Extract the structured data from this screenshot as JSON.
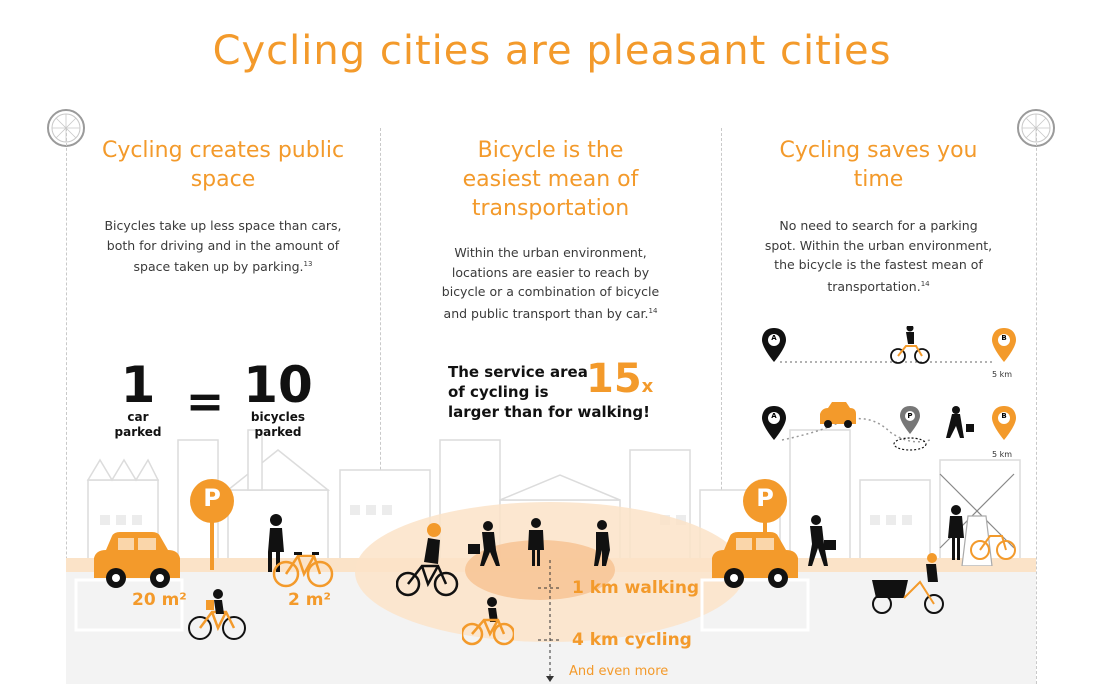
{
  "title": "Cycling cities are pleasant cities",
  "columns": [
    {
      "title_lines": [
        "Cycling creates public",
        "space"
      ],
      "body_lines": [
        "Bicycles take up less space than cars,",
        "both for driving and in the amount of",
        "space taken up by parking."
      ],
      "footnote": "13"
    },
    {
      "title_lines": [
        "Bicycle is the",
        "easiest mean of",
        "transportation"
      ],
      "body_lines": [
        "Within the urban environment,",
        "locations are easier to reach by",
        "bicycle or a combination of bicycle",
        "and public transport than by car."
      ],
      "footnote": "14"
    },
    {
      "title_lines": [
        "Cycling saves you",
        "time"
      ],
      "body_lines": [
        "No need to search for a parking",
        "spot. Within the urban environment,",
        "the bicycle is the fastest mean of",
        "transportation."
      ],
      "footnote": "14"
    }
  ],
  "equation": {
    "left_number": "1",
    "left_label_1": "car",
    "left_label_2": "parked",
    "equals": "=",
    "right_number": "10",
    "right_label_1": "bicycles",
    "right_label_2": "parked"
  },
  "service_area": {
    "line1": "The service area",
    "line2": "of cycling is",
    "line3": "larger than for walking!",
    "factor": "15",
    "factor_unit": "x"
  },
  "parking": {
    "sign_letter": "P",
    "car_area": "20 m²",
    "bike_area": "2 m²"
  },
  "distances": {
    "walking": "1 km walking",
    "cycling": "4 km cycling",
    "more": "And even more"
  },
  "routes": {
    "pin_a": "A",
    "pin_b": "B",
    "pin_p": "P",
    "distance_1": "5 km",
    "distance_2": "5 km"
  },
  "colors": {
    "accent": "#f39a2b",
    "dark": "#111111",
    "skyline": "#dcdcdc"
  },
  "icons": [
    "bicycle-wheel-icon",
    "parking-sign-icon",
    "car-icon",
    "cyclist-icon",
    "pedestrian-icon",
    "map-pin-icon",
    "windmill-icon",
    "cargo-bike-icon"
  ]
}
